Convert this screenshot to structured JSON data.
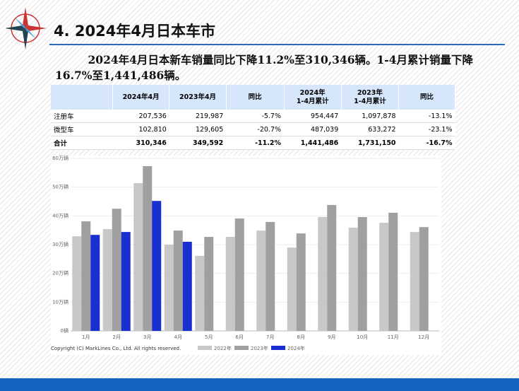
{
  "header": {
    "title": "4. 2024年4月日本车市"
  },
  "paragraph": "2024年4月日本新车销量同比下降11.2%至310,346辆。1-4月累计销量下降16.7%至1,441,486辆。",
  "table": {
    "columns": [
      "",
      "2024年4月",
      "2023年4月",
      "同比",
      "2024年\n1-4月累计",
      "2023年\n1-4月累计",
      "同比"
    ],
    "rows": [
      [
        "注册车",
        "207,536",
        "219,987",
        "-5.7%",
        "954,447",
        "1,097,878",
        "-13.1%"
      ],
      [
        "微型车",
        "102,810",
        "129,605",
        "-20.7%",
        "487,039",
        "633,272",
        "-23.1%"
      ],
      [
        "合计",
        "310,346",
        "349,592",
        "-11.2%",
        "1,441,486",
        "1,731,150",
        "-16.7%"
      ]
    ]
  },
  "chart_data": {
    "type": "bar",
    "categories": [
      "1月",
      "2月",
      "3月",
      "4月",
      "5月",
      "6月",
      "7月",
      "8月",
      "9月",
      "10月",
      "11月",
      "12月"
    ],
    "series": [
      {
        "name": "2022年",
        "color": "#c8c8c8",
        "values": [
          32.9,
          35.4,
          51.4,
          30.0,
          26.1,
          32.7,
          34.9,
          29.0,
          39.6,
          35.9,
          37.6,
          34.4
        ]
      },
      {
        "name": "2023年",
        "color": "#a0a0a0",
        "values": [
          38.1,
          42.5,
          57.3,
          34.9,
          32.7,
          39.1,
          37.9,
          33.9,
          43.8,
          39.6,
          41.1,
          36.1
        ]
      },
      {
        "name": "2024年",
        "color": "#1a2fd0",
        "values": [
          33.4,
          34.4,
          45.2,
          31.0,
          null,
          null,
          null,
          null,
          null,
          null,
          null,
          null
        ]
      }
    ],
    "ylim": [
      0,
      60
    ],
    "yticks": [
      {
        "value": 0,
        "label": "0辆"
      },
      {
        "value": 10,
        "label": "10万辆"
      },
      {
        "value": 20,
        "label": "20万辆"
      },
      {
        "value": 30,
        "label": "30万辆"
      },
      {
        "value": 40,
        "label": "40万辆"
      },
      {
        "value": 50,
        "label": "50万辆"
      },
      {
        "value": 60,
        "label": "60万辆"
      }
    ],
    "grid": true,
    "annotation": "Copyright (C) MarkLines Co., Ltd. All rights reserved."
  }
}
